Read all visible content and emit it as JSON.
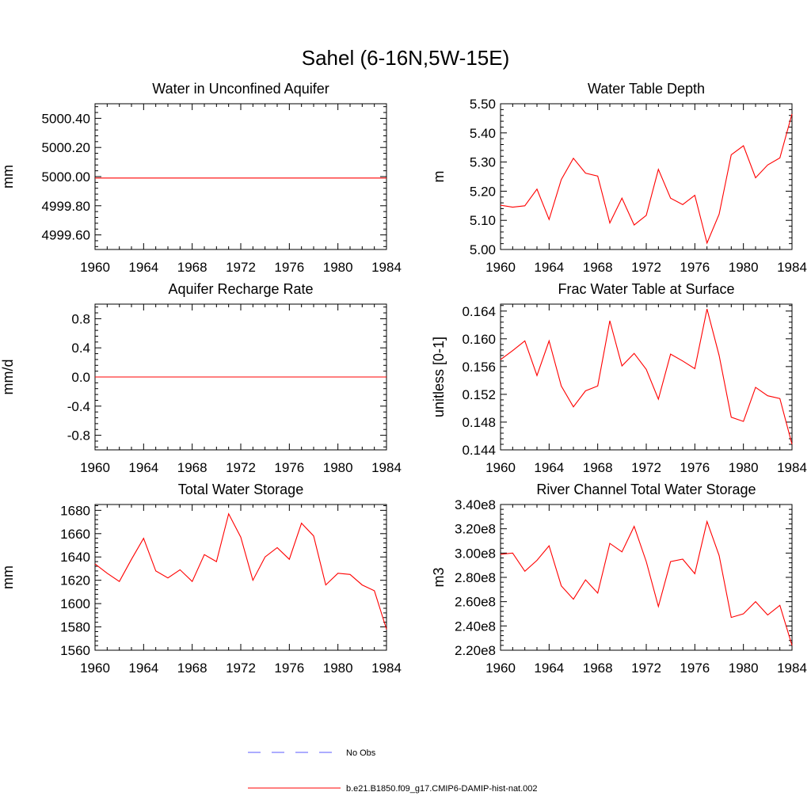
{
  "title": "Sahel (6-16N,5W-15E)",
  "colors": {
    "model": "#ff0000",
    "obs": "#5a5aff",
    "axis": "#000000"
  },
  "chart_data": [
    {
      "type": "line",
      "title": "Water in Unconfined Aquifer",
      "ylabel": "mm",
      "xlim": [
        1960,
        1984
      ],
      "ylim": [
        4999.5,
        5000.5
      ],
      "xticks": [
        "1960",
        "1964",
        "1968",
        "1972",
        "1976",
        "1980",
        "1984"
      ],
      "yticks": [
        4999.6,
        4999.8,
        5000.0,
        5000.2,
        5000.4
      ],
      "ytick_labels": [
        "4999.60",
        "4999.80",
        "5000.00",
        "5000.20",
        "5000.40"
      ],
      "x": [
        1960,
        1984
      ],
      "series": [
        {
          "values": [
            4999.99,
            4999.99
          ]
        }
      ]
    },
    {
      "type": "line",
      "title": "Water Table Depth",
      "ylabel": "m",
      "xlim": [
        1960,
        1984
      ],
      "ylim": [
        5.0,
        5.5
      ],
      "xticks": [
        "1960",
        "1964",
        "1968",
        "1972",
        "1976",
        "1980",
        "1984"
      ],
      "yticks": [
        5.0,
        5.1,
        5.2,
        5.3,
        5.4,
        5.5
      ],
      "ytick_labels": [
        "5.00",
        "5.10",
        "5.20",
        "5.30",
        "5.40",
        "5.50"
      ],
      "x": [
        1960,
        1961,
        1962,
        1963,
        1964,
        1965,
        1966,
        1967,
        1968,
        1969,
        1970,
        1971,
        1972,
        1973,
        1974,
        1975,
        1976,
        1977,
        1978,
        1979,
        1980,
        1981,
        1982,
        1983,
        1984
      ],
      "series": [
        {
          "values": [
            5.152,
            5.145,
            5.15,
            5.207,
            5.103,
            5.24,
            5.313,
            5.262,
            5.252,
            5.091,
            5.176,
            5.084,
            5.117,
            5.275,
            5.176,
            5.154,
            5.186,
            5.022,
            5.121,
            5.325,
            5.356,
            5.246,
            5.29,
            5.314,
            5.465
          ]
        }
      ]
    },
    {
      "type": "line",
      "title": "Aquifer Recharge Rate",
      "ylabel": "mm/d",
      "xlim": [
        1960,
        1984
      ],
      "ylim": [
        -1.0,
        1.0
      ],
      "xticks": [
        "1960",
        "1964",
        "1968",
        "1972",
        "1976",
        "1980",
        "1984"
      ],
      "yticks": [
        -0.8,
        -0.4,
        0.0,
        0.4,
        0.8
      ],
      "ytick_labels": [
        "-0.8",
        "-0.4",
        "0.0",
        "0.4",
        "0.8"
      ],
      "x": [
        1960,
        1984
      ],
      "series": [
        {
          "values": [
            0.0,
            0.0
          ]
        }
      ]
    },
    {
      "type": "line",
      "title": "Frac Water Table at Surface",
      "ylabel": "unitless [0-1]",
      "xlim": [
        1960,
        1984
      ],
      "ylim": [
        0.144,
        0.165
      ],
      "xticks": [
        "1960",
        "1964",
        "1968",
        "1972",
        "1976",
        "1980",
        "1984"
      ],
      "yticks": [
        0.144,
        0.148,
        0.152,
        0.156,
        0.16,
        0.164
      ],
      "ytick_labels": [
        "0.144",
        "0.148",
        "0.152",
        "0.156",
        "0.160",
        "0.164"
      ],
      "x": [
        1960,
        1961,
        1962,
        1963,
        1964,
        1965,
        1966,
        1967,
        1968,
        1969,
        1970,
        1971,
        1972,
        1973,
        1974,
        1975,
        1976,
        1977,
        1978,
        1979,
        1980,
        1981,
        1982,
        1983,
        1984
      ],
      "series": [
        {
          "values": [
            0.157,
            0.1583,
            0.1597,
            0.1547,
            0.1597,
            0.1532,
            0.1502,
            0.1525,
            0.1532,
            0.1626,
            0.1561,
            0.1579,
            0.1556,
            0.1513,
            0.1578,
            0.1568,
            0.1557,
            0.1643,
            0.1576,
            0.1487,
            0.1481,
            0.153,
            0.1518,
            0.1514,
            0.1448
          ]
        }
      ]
    },
    {
      "type": "line",
      "title": "Total Water Storage",
      "ylabel": "mm",
      "xlim": [
        1960,
        1984
      ],
      "ylim": [
        1560,
        1685
      ],
      "xticks": [
        "1960",
        "1964",
        "1968",
        "1972",
        "1976",
        "1980",
        "1984"
      ],
      "yticks": [
        1560,
        1580,
        1600,
        1620,
        1640,
        1660,
        1680
      ],
      "ytick_labels": [
        "1560",
        "1580",
        "1600",
        "1620",
        "1640",
        "1660",
        "1680"
      ],
      "x": [
        1960,
        1961,
        1962,
        1963,
        1964,
        1965,
        1966,
        1967,
        1968,
        1969,
        1970,
        1971,
        1972,
        1973,
        1974,
        1975,
        1976,
        1977,
        1978,
        1979,
        1980,
        1981,
        1982,
        1983,
        1984
      ],
      "series": [
        {
          "values": [
            1634,
            1626,
            1619,
            1638,
            1656,
            1628,
            1622,
            1629,
            1619,
            1642,
            1636,
            1677,
            1657,
            1620,
            1640,
            1648,
            1638,
            1669,
            1658,
            1616,
            1626,
            1625,
            1616,
            1611,
            1578
          ]
        }
      ]
    },
    {
      "type": "line",
      "title": "River Channel Total Water Storage",
      "ylabel": "m3",
      "xlim": [
        1960,
        1984
      ],
      "ylim": [
        220000000.0,
        340000000.0
      ],
      "xticks": [
        "1960",
        "1964",
        "1968",
        "1972",
        "1976",
        "1980",
        "1984"
      ],
      "yticks": [
        220000000.0,
        240000000.0,
        260000000.0,
        280000000.0,
        300000000.0,
        320000000.0,
        340000000.0
      ],
      "ytick_labels": [
        "2.20e8",
        "2.40e8",
        "2.60e8",
        "2.80e8",
        "3.00e8",
        "3.20e8",
        "3.40e8"
      ],
      "x": [
        1960,
        1961,
        1962,
        1963,
        1964,
        1965,
        1966,
        1967,
        1968,
        1969,
        1970,
        1971,
        1972,
        1973,
        1974,
        1975,
        1976,
        1977,
        1978,
        1979,
        1980,
        1981,
        1982,
        1983,
        1984
      ],
      "series": [
        {
          "values": [
            299000000.0,
            300000000.0,
            285000000.0,
            294000000.0,
            306000000.0,
            273000000.0,
            262000000.0,
            278000000.0,
            267000000.0,
            308000000.0,
            301000000.0,
            322000000.0,
            293000000.0,
            256000000.0,
            293000000.0,
            295000000.0,
            283000000.0,
            326000000.0,
            298000000.0,
            247000000.0,
            250000000.0,
            260000000.0,
            249000000.0,
            257000000.0,
            224000000.0
          ]
        }
      ]
    }
  ],
  "legend": {
    "obs_label": "No Obs",
    "model_label": "b.e21.B1850.f09_g17.CMIP6-DAMIP-hist-nat.002"
  }
}
